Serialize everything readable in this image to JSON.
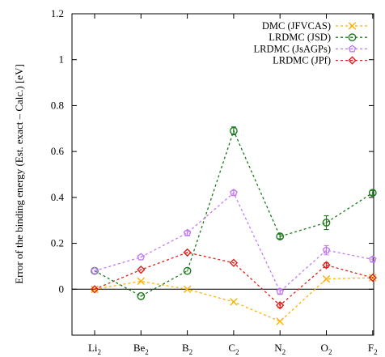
{
  "chart_data": {
    "type": "line",
    "title": "",
    "xlabel": "",
    "ylabel": "Error of the binding energy (Est. exact – Calc.) [eV]",
    "categories": [
      {
        "base": "Li",
        "sub": "2"
      },
      {
        "base": "Be",
        "sub": "2"
      },
      {
        "base": "B",
        "sub": "2"
      },
      {
        "base": "C",
        "sub": "2"
      },
      {
        "base": "N",
        "sub": "2"
      },
      {
        "base": "O",
        "sub": "2"
      },
      {
        "base": "F",
        "sub": "2"
      }
    ],
    "ylim": [
      -0.2,
      1.2
    ],
    "yticks": [
      "0",
      "0.2",
      "0.4",
      "0.6",
      "0.8",
      "1",
      "1.2"
    ],
    "ytick_values": [
      0,
      0.2,
      0.4,
      0.6,
      0.8,
      1.0,
      1.2
    ],
    "zero_line": true,
    "grid": false,
    "legend_position": "top-right",
    "series": [
      {
        "name": "DMC (JFVCAS)",
        "color": "#ffb000",
        "marker": "cross",
        "values": [
          0.0,
          0.035,
          0.0,
          -0.055,
          -0.14,
          0.045,
          0.05
        ],
        "errors": [
          0,
          0,
          0,
          0,
          0,
          0,
          0
        ]
      },
      {
        "name": "LRDMC (JSD)",
        "color": "#1a7a1a",
        "marker": "circle",
        "values": [
          0.08,
          -0.03,
          0.08,
          0.69,
          0.23,
          0.29,
          0.42
        ],
        "errors": [
          0,
          0,
          0,
          0.017,
          0.01,
          0.03,
          0.01
        ]
      },
      {
        "name": "LRDMC (JsAGPs)",
        "color": "#c27cf2",
        "marker": "pentagon",
        "values": [
          0.08,
          0.14,
          0.245,
          0.42,
          -0.01,
          0.17,
          0.13
        ],
        "errors": [
          0,
          0,
          0.01,
          0.01,
          0.01,
          0.02,
          0.01
        ]
      },
      {
        "name": "LRDMC (JPf)",
        "color": "#e0201b",
        "marker": "diamond",
        "values": [
          0.0,
          0.085,
          0.16,
          0.115,
          -0.07,
          0.105,
          0.05
        ],
        "errors": [
          0,
          0,
          0,
          0,
          0.01,
          0.01,
          0
        ]
      }
    ]
  }
}
